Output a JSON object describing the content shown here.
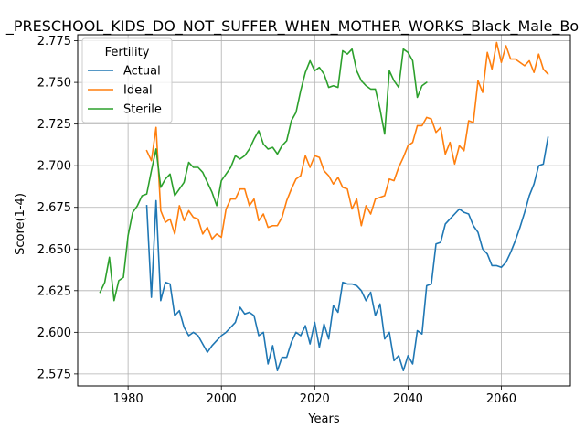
{
  "chart_data": {
    "type": "line",
    "title": "_PRESCHOOL_KIDS_DO_NOT_SUFFER_WHEN_MOTHER_WORKS_Black_Male_Bo",
    "xlabel": "Years",
    "ylabel": "Score(1-4)",
    "xlim": [
      1969.2,
      2074.8
    ],
    "ylim": [
      2.5678,
      2.7786
    ],
    "xticks": [
      1980,
      2000,
      2020,
      2040,
      2060
    ],
    "yticks": [
      2.575,
      2.6,
      2.625,
      2.65,
      2.675,
      2.7,
      2.725,
      2.75,
      2.775
    ],
    "grid": true,
    "legend": {
      "title": "Fertility",
      "position": "upper-left"
    },
    "series": [
      {
        "name": "Actual",
        "color": "#1f77b4",
        "x": [
          1984,
          1985,
          1986,
          1987,
          1988,
          1989,
          1990,
          1991,
          1992,
          1993,
          1994,
          1995,
          1996,
          1997,
          1998,
          1999,
          2000,
          2001,
          2002,
          2003,
          2004,
          2005,
          2006,
          2007,
          2008,
          2009,
          2010,
          2011,
          2012,
          2013,
          2014,
          2015,
          2016,
          2017,
          2018,
          2019,
          2020,
          2021,
          2022,
          2023,
          2024,
          2025,
          2026,
          2027,
          2028,
          2029,
          2030,
          2031,
          2032,
          2033,
          2034,
          2035,
          2036,
          2037,
          2038,
          2039,
          2040,
          2041,
          2042,
          2043,
          2044,
          2045,
          2046,
          2047,
          2048,
          2049,
          2050,
          2051,
          2052,
          2053,
          2054,
          2055,
          2056,
          2057,
          2058,
          2059,
          2060,
          2061,
          2062,
          2063,
          2064,
          2065,
          2066,
          2067,
          2068,
          2069,
          2070
        ],
        "y": [
          2.676,
          2.621,
          2.679,
          2.619,
          2.63,
          2.629,
          2.61,
          2.613,
          2.603,
          2.598,
          2.6,
          2.598,
          2.593,
          2.588,
          2.592,
          2.595,
          2.598,
          2.6,
          2.603,
          2.606,
          2.615,
          2.611,
          2.612,
          2.61,
          2.598,
          2.6,
          2.581,
          2.592,
          2.577,
          2.585,
          2.585,
          2.594,
          2.6,
          2.598,
          2.604,
          2.593,
          2.606,
          2.591,
          2.605,
          2.596,
          2.616,
          2.612,
          2.63,
          2.629,
          2.629,
          2.628,
          2.625,
          2.619,
          2.624,
          2.61,
          2.617,
          2.596,
          2.6,
          2.583,
          2.586,
          2.577,
          2.586,
          2.581,
          2.601,
          2.599,
          2.628,
          2.629,
          2.653,
          2.654,
          2.665,
          2.668,
          2.671,
          2.674,
          2.672,
          2.671,
          2.664,
          2.66,
          2.65,
          2.647,
          2.64,
          2.64,
          2.639,
          2.642,
          2.648,
          2.655,
          2.663,
          2.672,
          2.682,
          2.689,
          2.7,
          2.701,
          2.717
        ]
      },
      {
        "name": "Ideal",
        "color": "#ff7f0e",
        "x": [
          1984,
          1985,
          1986,
          1987,
          1988,
          1989,
          1990,
          1991,
          1992,
          1993,
          1994,
          1995,
          1996,
          1997,
          1998,
          1999,
          2000,
          2001,
          2002,
          2003,
          2004,
          2005,
          2006,
          2007,
          2008,
          2009,
          2010,
          2011,
          2012,
          2013,
          2014,
          2015,
          2016,
          2017,
          2018,
          2019,
          2020,
          2021,
          2022,
          2023,
          2024,
          2025,
          2026,
          2027,
          2028,
          2029,
          2030,
          2031,
          2032,
          2033,
          2034,
          2035,
          2036,
          2037,
          2038,
          2039,
          2040,
          2041,
          2042,
          2043,
          2044,
          2045,
          2046,
          2047,
          2048,
          2049,
          2050,
          2051,
          2052,
          2053,
          2054,
          2055,
          2056,
          2057,
          2058,
          2059,
          2060,
          2061,
          2062,
          2063,
          2064,
          2065,
          2066,
          2067,
          2068,
          2069,
          2070
        ],
        "y": [
          2.709,
          2.703,
          2.723,
          2.673,
          2.666,
          2.668,
          2.659,
          2.676,
          2.667,
          2.673,
          2.669,
          2.668,
          2.659,
          2.663,
          2.656,
          2.659,
          2.657,
          2.674,
          2.68,
          2.68,
          2.686,
          2.686,
          2.676,
          2.68,
          2.667,
          2.671,
          2.663,
          2.664,
          2.664,
          2.669,
          2.679,
          2.686,
          2.692,
          2.694,
          2.706,
          2.699,
          2.706,
          2.705,
          2.697,
          2.694,
          2.689,
          2.693,
          2.687,
          2.686,
          2.674,
          2.68,
          2.664,
          2.676,
          2.671,
          2.68,
          2.681,
          2.682,
          2.692,
          2.691,
          2.699,
          2.705,
          2.712,
          2.714,
          2.724,
          2.724,
          2.729,
          2.728,
          2.72,
          2.723,
          2.707,
          2.714,
          2.701,
          2.712,
          2.709,
          2.727,
          2.726,
          2.751,
          2.744,
          2.768,
          2.758,
          2.774,
          2.762,
          2.772,
          2.764,
          2.764,
          2.762,
          2.76,
          2.763,
          2.756,
          2.767,
          2.758,
          2.755
        ]
      },
      {
        "name": "Sterile",
        "color": "#2ca02c",
        "x": [
          1974,
          1975,
          1976,
          1977,
          1978,
          1979,
          1980,
          1981,
          1982,
          1983,
          1984,
          1985,
          1986,
          1987,
          1988,
          1989,
          1990,
          1991,
          1992,
          1993,
          1994,
          1995,
          1996,
          1997,
          1998,
          1999,
          2000,
          2001,
          2002,
          2003,
          2004,
          2005,
          2006,
          2007,
          2008,
          2009,
          2010,
          2011,
          2012,
          2013,
          2014,
          2015,
          2016,
          2017,
          2018,
          2019,
          2020,
          2021,
          2022,
          2023,
          2024,
          2025,
          2026,
          2027,
          2028,
          2029,
          2030,
          2031,
          2032,
          2033,
          2034,
          2035,
          2036,
          2037,
          2038,
          2039,
          2040,
          2041,
          2042,
          2043,
          2044
        ],
        "y": [
          2.624,
          2.63,
          2.645,
          2.619,
          2.631,
          2.633,
          2.658,
          2.672,
          2.676,
          2.682,
          2.683,
          2.697,
          2.71,
          2.687,
          2.692,
          2.695,
          2.682,
          2.686,
          2.69,
          2.702,
          2.699,
          2.699,
          2.696,
          2.69,
          2.684,
          2.676,
          2.691,
          2.695,
          2.699,
          2.706,
          2.704,
          2.706,
          2.71,
          2.716,
          2.721,
          2.713,
          2.71,
          2.711,
          2.707,
          2.712,
          2.715,
          2.727,
          2.732,
          2.745,
          2.756,
          2.763,
          2.757,
          2.759,
          2.755,
          2.747,
          2.748,
          2.747,
          2.769,
          2.767,
          2.77,
          2.757,
          2.751,
          2.748,
          2.746,
          2.746,
          2.734,
          2.719,
          2.757,
          2.751,
          2.747,
          2.77,
          2.768,
          2.763,
          2.741,
          2.748,
          2.75
        ]
      }
    ]
  }
}
